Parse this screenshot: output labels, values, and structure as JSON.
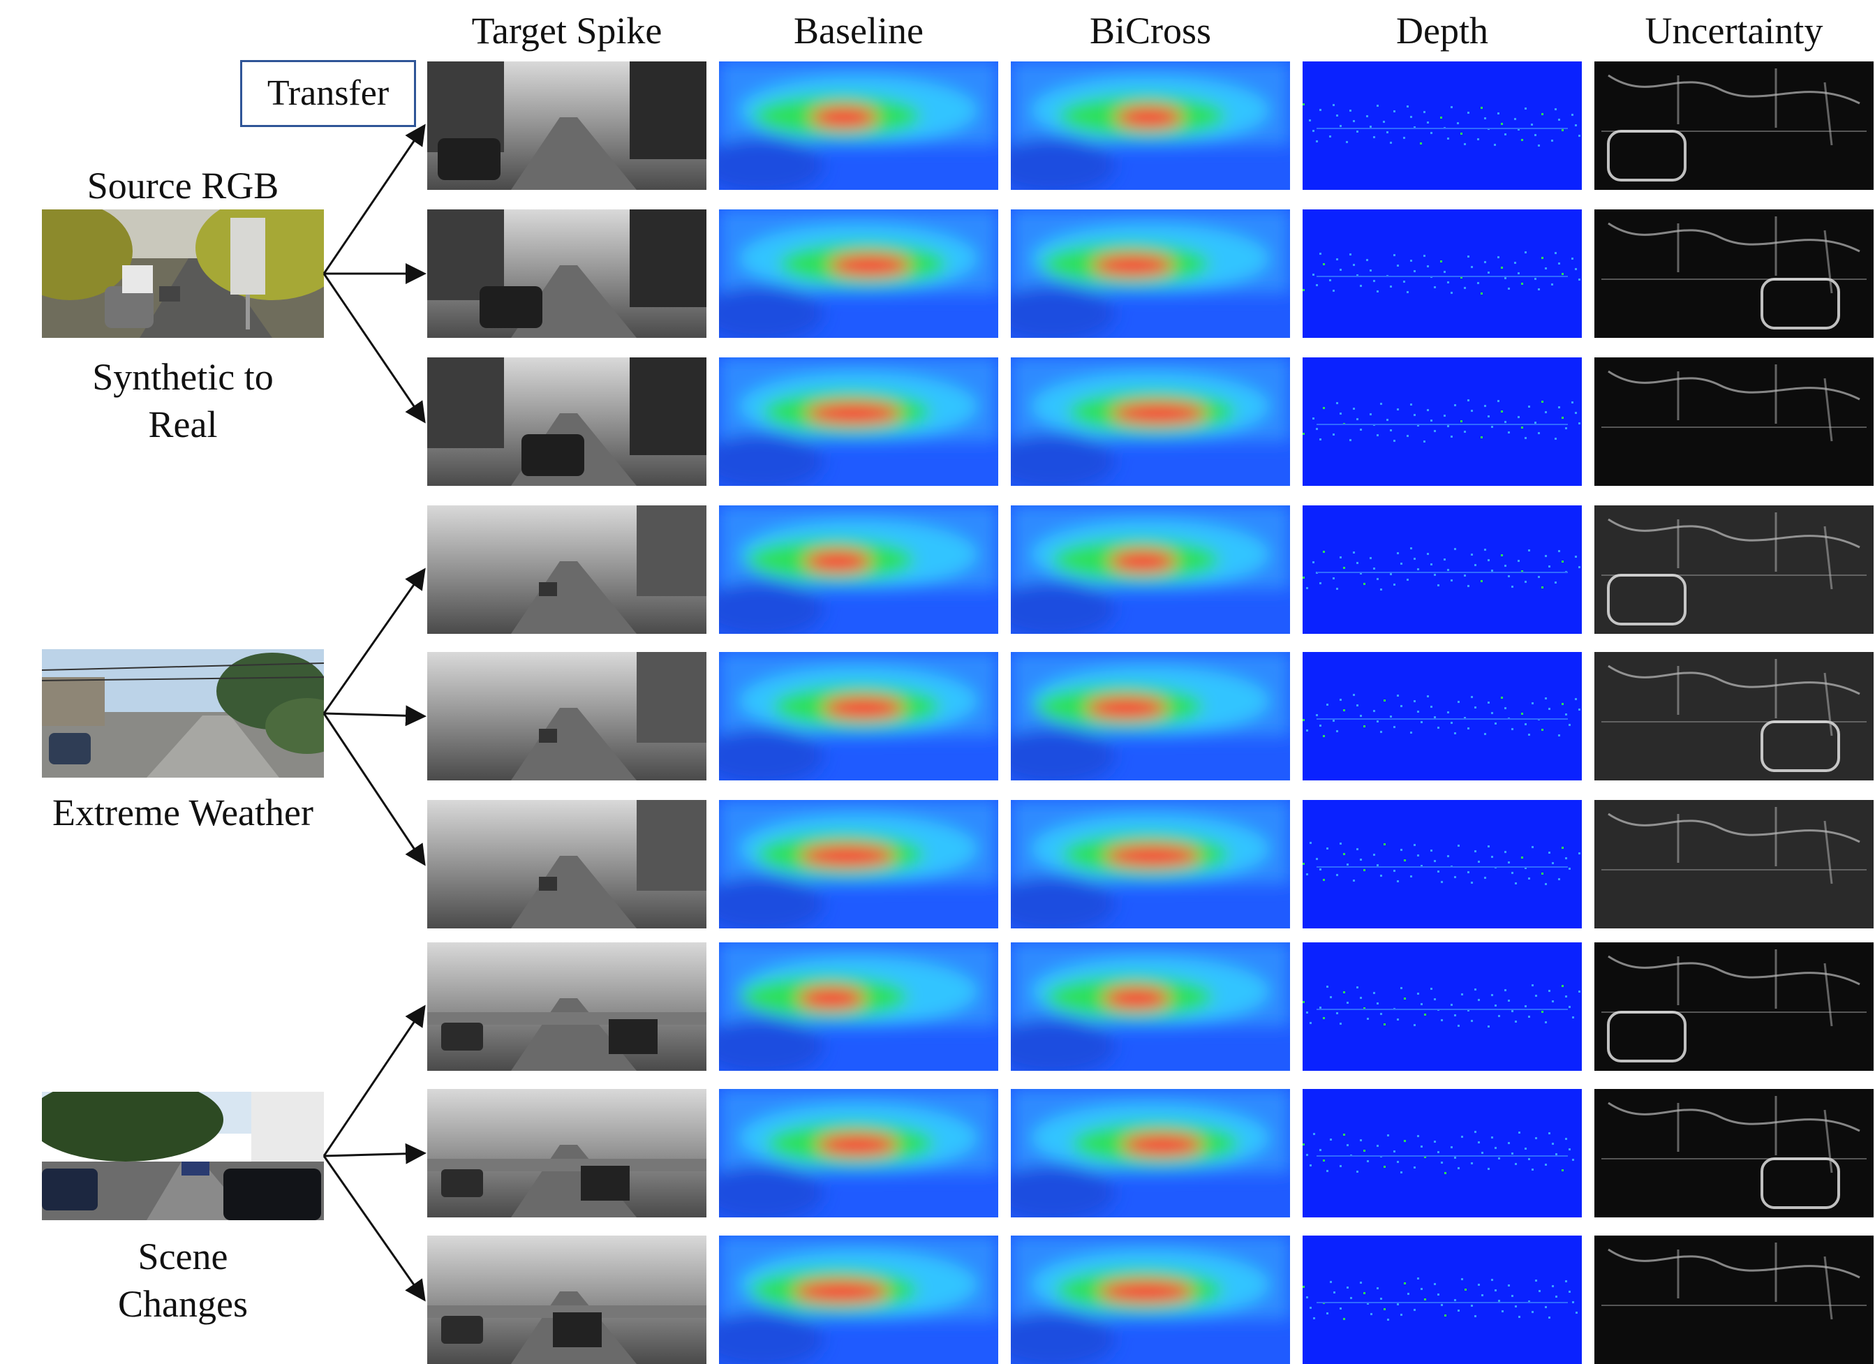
{
  "columns": [
    "Target Spike",
    "Baseline",
    "BiCross",
    "Depth",
    "Uncertainty"
  ],
  "transfer_label": "Transfer",
  "groups": [
    {
      "top_label": "Source RGB",
      "label_lines": [
        "Synthetic to",
        "Real"
      ],
      "source_image": "synthetic-driving-scene",
      "rows": 3
    },
    {
      "top_label": "",
      "label_lines": [
        "Extreme Weather"
      ],
      "source_image": "overcast-road-scene",
      "rows": 3
    },
    {
      "top_label": "",
      "label_lines": [
        "Scene",
        "Changes"
      ],
      "source_image": "urban-street-scene",
      "rows": 3
    }
  ],
  "cell_types": {
    "Target Spike": "grayscale-spike-frame",
    "Baseline": "jet-colormap-depth-prediction",
    "BiCross": "jet-colormap-depth-prediction",
    "Depth": "sparse-ground-truth-depth",
    "Uncertainty": "uncertainty-edge-map"
  },
  "colors": {
    "transfer_box_border": "#2f5597",
    "jet_blue": "#1f5bff",
    "jet_cyan": "#33c4ff",
    "jet_green": "#2ee05a",
    "jet_red": "#ff1a3a",
    "depth_blue": "#0a22ff",
    "uncertainty_bg": "#0c0c0c"
  }
}
